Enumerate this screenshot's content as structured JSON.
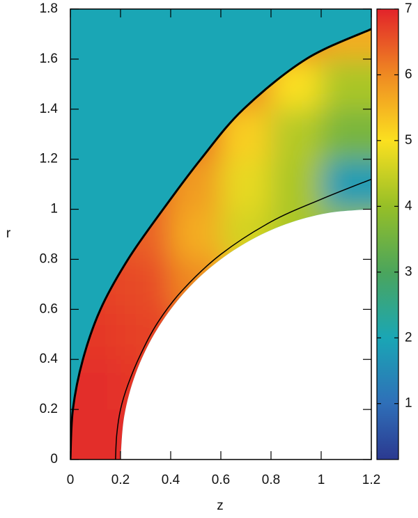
{
  "chart_data": {
    "type": "heatmap",
    "x_label": "z",
    "y_label": "r",
    "xlim": [
      0,
      1.2
    ],
    "ylim": [
      0,
      1.8
    ],
    "xticks": [
      0,
      0.2,
      0.4,
      0.6,
      0.8,
      1,
      1.2
    ],
    "yticks": [
      0,
      0.2,
      0.4,
      0.6,
      0.8,
      1,
      1.2,
      1.4,
      1.6,
      1.8
    ],
    "clim": [
      0.15,
      7
    ],
    "cticks": [
      1,
      2,
      3,
      4,
      5,
      6,
      7
    ],
    "colormap": [
      "#2b3990",
      "#2f6fb8",
      "#1aa6b5",
      "#4ba55c",
      "#96bf27",
      "#fbe020",
      "#ef8a22",
      "#e2232a"
    ],
    "background_value": 2,
    "field": {
      "z": [
        0,
        0.2,
        0.4,
        0.6,
        0.8,
        1.0,
        1.2
      ],
      "r": [
        0,
        0.2,
        0.4,
        0.6,
        0.8,
        1.0,
        1.2,
        1.4,
        1.6,
        1.8
      ],
      "values": [
        [
          6.9,
          6.9,
          6.9,
          6.9,
          6.9,
          6.9
        ],
        [
          6.9,
          6.8,
          6.8,
          6.8,
          6.8,
          6.8
        ],
        [
          6.8,
          6.7,
          6.5,
          6.4,
          6.4,
          6.4
        ],
        [
          6.7,
          6.6,
          6.0,
          5.5,
          5.3,
          5.3
        ],
        [
          6.6,
          6.4,
          5.6,
          4.6,
          4.2,
          4.0
        ],
        [
          6.5,
          6.3,
          5.8,
          4.8,
          4.2,
          1.8
        ],
        [
          6.4,
          6.3,
          6.2,
          5.2,
          4.3,
          3.6
        ],
        [
          6.3,
          6.3,
          6.3,
          6.0,
          5.0,
          4.2
        ],
        [
          6.3,
          6.3,
          6.3,
          6.5,
          6.2,
          5.6
        ]
      ]
    },
    "body": {
      "x": [
        0.2,
        0.215,
        0.26,
        0.334,
        0.434,
        0.557,
        0.7,
        0.858,
        1.026,
        1.2
      ],
      "values": [
        0,
        0.174,
        0.342,
        0.5,
        0.643,
        0.766,
        0.866,
        0.94,
        0.985,
        1.0
      ]
    },
    "lines": [
      {
        "color": "#000000",
        "width": 3,
        "x": [
          0,
          0.01,
          0.05,
          0.12,
          0.23,
          0.37,
          0.52,
          0.69,
          0.94,
          1.2
        ],
        "values": [
          0,
          0.2,
          0.4,
          0.6,
          0.8,
          1.0,
          1.2,
          1.4,
          1.6,
          1.72
        ]
      },
      {
        "color": "#000000",
        "width": 1.5,
        "x": [
          0.18,
          0.185,
          0.2,
          0.23,
          0.28,
          0.35,
          0.45,
          0.6,
          0.8,
          1.0,
          1.2
        ],
        "values": [
          0,
          0.1,
          0.2,
          0.3,
          0.42,
          0.55,
          0.68,
          0.82,
          0.95,
          1.04,
          1.12
        ]
      }
    ]
  }
}
